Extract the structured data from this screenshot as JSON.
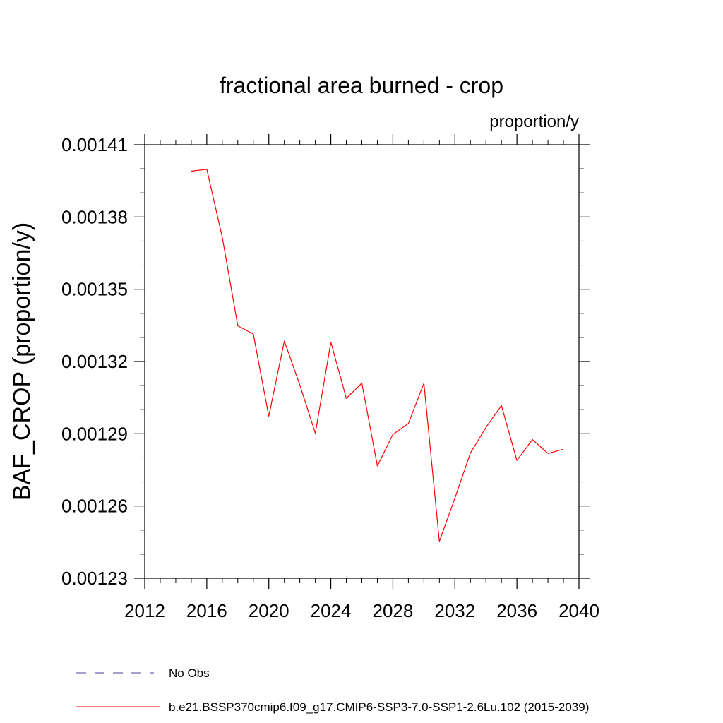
{
  "chart_data": {
    "type": "line",
    "title": "fractional area burned - crop",
    "units_label": "proportion/y",
    "xlabel": "",
    "ylabel": "BAF_CROP  (proportion/y)",
    "xlim": [
      2012,
      2040
    ],
    "ylim": [
      0.00123,
      0.00141
    ],
    "x_ticks": [
      2012,
      2016,
      2020,
      2024,
      2028,
      2032,
      2036,
      2040
    ],
    "x_tick_labels": [
      "2012",
      "2016",
      "2020",
      "2024",
      "2028",
      "2032",
      "2036",
      "2040"
    ],
    "y_ticks": [
      0.00123,
      0.00126,
      0.00129,
      0.00132,
      0.00135,
      0.00138,
      0.00141
    ],
    "y_tick_labels": [
      "0.00123",
      "0.00126",
      "0.00129",
      "0.00132",
      "0.00135",
      "0.00138",
      "0.00141"
    ],
    "grid": false,
    "legend_position": "bottom",
    "series": [
      {
        "name": "b.e21.BSSP370cmip6.f09_g17.CMIP6-SSP3-7.0-SSP1-2.6Lu.102 (2015-2039)",
        "color": "#ff0000",
        "style": "solid",
        "x": [
          2015,
          2016,
          2017,
          2018,
          2019,
          2020,
          2021,
          2022,
          2023,
          2024,
          2025,
          2026,
          2027,
          2028,
          2029,
          2030,
          2031,
          2032,
          2033,
          2034,
          2035,
          2036,
          2037,
          2038,
          2039
        ],
        "values": [
          0.001399,
          0.0013998,
          0.0013716,
          0.0013348,
          0.0013314,
          0.0012973,
          0.0013285,
          0.0013103,
          0.0012902,
          0.001328,
          0.0013047,
          0.001311,
          0.0012766,
          0.0012897,
          0.0012943,
          0.001311,
          0.0012453,
          0.0012633,
          0.001282,
          0.0012926,
          0.0013017,
          0.0012789,
          0.0012876,
          0.0012818,
          0.0012836
        ]
      }
    ],
    "legend": [
      {
        "label": "No Obs",
        "color": "#4b3fa0",
        "style": "dashed"
      },
      {
        "label": "b.e21.BSSP370cmip6.f09_g17.CMIP6-SSP3-7.0-SSP1-2.6Lu.102 (2015-2039)",
        "color": "#ff0000",
        "style": "solid"
      }
    ]
  }
}
